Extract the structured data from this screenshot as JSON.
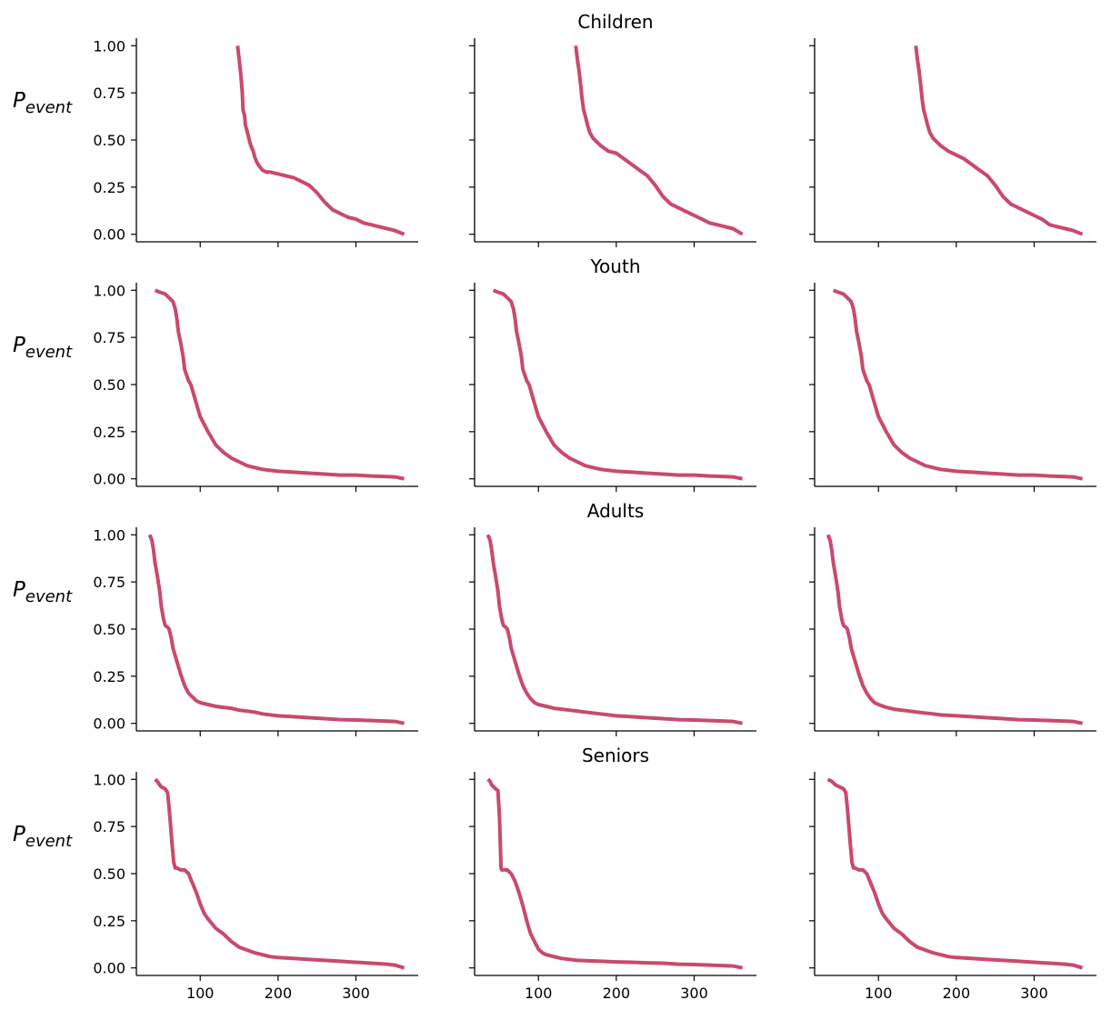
{
  "chart_data": {
    "type": "line",
    "layout": "4 rows x 3 columns of small multiples, shared x and y axes",
    "xlim": [
      18,
      380
    ],
    "xticks": [
      100,
      200,
      300
    ],
    "ylim": [
      -0.04,
      1.04
    ],
    "yticks": [
      0.0,
      0.25,
      0.5,
      0.75,
      1.0
    ],
    "ytick_labels": [
      "0.00",
      "0.25",
      "0.50",
      "0.75",
      "1.00"
    ],
    "ylabel_base": "P",
    "ylabel_sub": "event",
    "line_color": "#c94a6c",
    "grid": false,
    "rows": [
      {
        "title": "Children",
        "panels": [
          {
            "x": [
              148,
              150,
              152,
              154,
              155,
              157,
              158,
              160,
              163,
              165,
              168,
              170,
              173,
              176,
              180,
              185,
              190,
              200,
              210,
              220,
              230,
              240,
              250,
              260,
              270,
              280,
              290,
              300,
              310,
              320,
              330,
              340,
              350,
              362
            ],
            "y": [
              1.0,
              0.93,
              0.85,
              0.75,
              0.66,
              0.63,
              0.58,
              0.55,
              0.5,
              0.47,
              0.44,
              0.41,
              0.38,
              0.36,
              0.34,
              0.33,
              0.33,
              0.32,
              0.31,
              0.3,
              0.28,
              0.26,
              0.22,
              0.17,
              0.13,
              0.11,
              0.09,
              0.08,
              0.06,
              0.05,
              0.04,
              0.03,
              0.02,
              0.0
            ]
          },
          {
            "x": [
              148,
              150,
              152,
              154,
              156,
              158,
              160,
              163,
              166,
              170,
              175,
              180,
              190,
              200,
              210,
              220,
              230,
              240,
              250,
              260,
              270,
              280,
              290,
              300,
              310,
              320,
              330,
              340,
              350,
              362
            ],
            "y": [
              1.0,
              0.93,
              0.87,
              0.8,
              0.72,
              0.66,
              0.63,
              0.58,
              0.54,
              0.51,
              0.49,
              0.47,
              0.44,
              0.43,
              0.4,
              0.37,
              0.34,
              0.31,
              0.26,
              0.2,
              0.16,
              0.14,
              0.12,
              0.1,
              0.08,
              0.06,
              0.05,
              0.04,
              0.03,
              0.0
            ]
          },
          {
            "x": [
              148,
              150,
              152,
              154,
              156,
              158,
              160,
              163,
              166,
              170,
              175,
              180,
              190,
              200,
              210,
              220,
              230,
              240,
              250,
              260,
              270,
              280,
              290,
              300,
              310,
              320,
              330,
              340,
              350,
              362
            ],
            "y": [
              1.0,
              0.93,
              0.87,
              0.8,
              0.72,
              0.66,
              0.63,
              0.58,
              0.54,
              0.51,
              0.49,
              0.47,
              0.44,
              0.42,
              0.4,
              0.37,
              0.34,
              0.31,
              0.26,
              0.2,
              0.16,
              0.14,
              0.12,
              0.1,
              0.08,
              0.05,
              0.04,
              0.03,
              0.02,
              0.0
            ]
          }
        ]
      },
      {
        "title": "Youth",
        "panels": [
          {
            "x": [
              42,
              48,
              55,
              60,
              65,
              68,
              70,
              72,
              75,
              78,
              80,
              85,
              88,
              90,
              95,
              100,
              105,
              110,
              120,
              130,
              140,
              150,
              160,
              170,
              180,
              200,
              220,
              240,
              260,
              280,
              300,
              320,
              340,
              350,
              362
            ],
            "y": [
              1.0,
              0.99,
              0.98,
              0.96,
              0.94,
              0.9,
              0.85,
              0.78,
              0.72,
              0.65,
              0.58,
              0.52,
              0.5,
              0.47,
              0.4,
              0.33,
              0.29,
              0.25,
              0.18,
              0.14,
              0.11,
              0.09,
              0.07,
              0.06,
              0.05,
              0.04,
              0.035,
              0.03,
              0.025,
              0.02,
              0.02,
              0.015,
              0.012,
              0.01,
              0.0
            ]
          },
          {
            "x": [
              42,
              48,
              55,
              60,
              65,
              68,
              70,
              72,
              75,
              78,
              80,
              85,
              88,
              90,
              95,
              100,
              105,
              110,
              120,
              130,
              140,
              150,
              160,
              170,
              180,
              200,
              220,
              240,
              260,
              280,
              300,
              320,
              340,
              350,
              362
            ],
            "y": [
              1.0,
              0.99,
              0.98,
              0.96,
              0.94,
              0.9,
              0.85,
              0.78,
              0.72,
              0.65,
              0.58,
              0.52,
              0.5,
              0.47,
              0.4,
              0.33,
              0.29,
              0.25,
              0.18,
              0.14,
              0.11,
              0.09,
              0.07,
              0.06,
              0.05,
              0.04,
              0.035,
              0.03,
              0.025,
              0.02,
              0.02,
              0.015,
              0.012,
              0.01,
              0.0
            ]
          },
          {
            "x": [
              42,
              48,
              55,
              60,
              65,
              68,
              70,
              72,
              75,
              78,
              80,
              85,
              88,
              90,
              95,
              100,
              105,
              110,
              120,
              130,
              140,
              150,
              160,
              170,
              180,
              200,
              220,
              240,
              260,
              280,
              300,
              320,
              340,
              350,
              362
            ],
            "y": [
              1.0,
              0.99,
              0.98,
              0.96,
              0.94,
              0.9,
              0.85,
              0.78,
              0.72,
              0.65,
              0.58,
              0.52,
              0.5,
              0.47,
              0.4,
              0.33,
              0.29,
              0.25,
              0.18,
              0.14,
              0.11,
              0.09,
              0.07,
              0.06,
              0.05,
              0.04,
              0.035,
              0.03,
              0.025,
              0.02,
              0.02,
              0.015,
              0.012,
              0.01,
              0.0
            ]
          }
        ]
      },
      {
        "title": "Adults",
        "panels": [
          {
            "x": [
              35,
              38,
              40,
              42,
              45,
              48,
              50,
              53,
              55,
              58,
              60,
              63,
              65,
              70,
              75,
              80,
              85,
              90,
              95,
              100,
              110,
              120,
              130,
              140,
              150,
              160,
              170,
              180,
              200,
              220,
              240,
              260,
              280,
              300,
              320,
              340,
              350,
              362
            ],
            "y": [
              1.0,
              0.97,
              0.92,
              0.85,
              0.78,
              0.7,
              0.62,
              0.55,
              0.52,
              0.51,
              0.5,
              0.45,
              0.4,
              0.33,
              0.26,
              0.2,
              0.16,
              0.14,
              0.12,
              0.11,
              0.1,
              0.09,
              0.085,
              0.08,
              0.07,
              0.065,
              0.06,
              0.05,
              0.04,
              0.035,
              0.03,
              0.025,
              0.02,
              0.018,
              0.015,
              0.012,
              0.01,
              0.0
            ]
          },
          {
            "x": [
              35,
              38,
              40,
              42,
              45,
              48,
              50,
              53,
              55,
              58,
              60,
              63,
              65,
              70,
              75,
              80,
              85,
              90,
              95,
              100,
              110,
              120,
              130,
              140,
              150,
              160,
              170,
              180,
              200,
              220,
              240,
              260,
              280,
              300,
              320,
              340,
              350,
              362
            ],
            "y": [
              1.0,
              0.97,
              0.92,
              0.85,
              0.78,
              0.7,
              0.62,
              0.55,
              0.52,
              0.51,
              0.5,
              0.45,
              0.4,
              0.33,
              0.26,
              0.2,
              0.16,
              0.13,
              0.11,
              0.1,
              0.09,
              0.08,
              0.075,
              0.07,
              0.065,
              0.06,
              0.055,
              0.05,
              0.04,
              0.035,
              0.03,
              0.025,
              0.02,
              0.018,
              0.015,
              0.012,
              0.01,
              0.0
            ]
          },
          {
            "x": [
              35,
              38,
              40,
              42,
              45,
              48,
              50,
              53,
              55,
              58,
              60,
              63,
              65,
              70,
              75,
              80,
              85,
              90,
              95,
              100,
              110,
              120,
              130,
              140,
              150,
              160,
              170,
              180,
              200,
              220,
              240,
              260,
              280,
              300,
              320,
              340,
              350,
              362
            ],
            "y": [
              1.0,
              0.97,
              0.92,
              0.85,
              0.78,
              0.7,
              0.62,
              0.55,
              0.52,
              0.51,
              0.5,
              0.45,
              0.4,
              0.33,
              0.26,
              0.2,
              0.16,
              0.13,
              0.11,
              0.1,
              0.085,
              0.075,
              0.07,
              0.065,
              0.06,
              0.055,
              0.05,
              0.045,
              0.04,
              0.035,
              0.03,
              0.025,
              0.02,
              0.018,
              0.015,
              0.012,
              0.01,
              0.0
            ]
          }
        ]
      },
      {
        "title": "Seniors",
        "panels": [
          {
            "x": [
              42,
              45,
              48,
              50,
              55,
              58,
              60,
              62,
              64,
              66,
              68,
              70,
              75,
              80,
              85,
              88,
              90,
              95,
              100,
              105,
              110,
              120,
              130,
              140,
              150,
              160,
              170,
              180,
              190,
              200,
              220,
              240,
              260,
              280,
              300,
              320,
              340,
              350,
              362
            ],
            "y": [
              1.0,
              0.99,
              0.97,
              0.96,
              0.95,
              0.93,
              0.85,
              0.75,
              0.65,
              0.56,
              0.53,
              0.53,
              0.52,
              0.52,
              0.5,
              0.47,
              0.45,
              0.4,
              0.34,
              0.29,
              0.26,
              0.21,
              0.18,
              0.14,
              0.11,
              0.095,
              0.08,
              0.07,
              0.06,
              0.055,
              0.05,
              0.045,
              0.04,
              0.035,
              0.03,
              0.025,
              0.02,
              0.015,
              0.0
            ]
          },
          {
            "x": [
              35,
              38,
              40,
              45,
              48,
              50,
              52,
              53,
              55,
              58,
              60,
              65,
              70,
              75,
              80,
              85,
              90,
              95,
              100,
              105,
              110,
              120,
              130,
              140,
              150,
              160,
              180,
              200,
              220,
              240,
              260,
              280,
              300,
              320,
              340,
              350,
              362
            ],
            "y": [
              1.0,
              0.99,
              0.97,
              0.95,
              0.94,
              0.8,
              0.53,
              0.52,
              0.52,
              0.52,
              0.52,
              0.5,
              0.46,
              0.4,
              0.33,
              0.25,
              0.18,
              0.14,
              0.1,
              0.08,
              0.07,
              0.06,
              0.05,
              0.045,
              0.04,
              0.038,
              0.035,
              0.032,
              0.03,
              0.027,
              0.025,
              0.02,
              0.018,
              0.015,
              0.012,
              0.01,
              0.0
            ]
          },
          {
            "x": [
              35,
              40,
              45,
              50,
              55,
              58,
              60,
              62,
              64,
              66,
              68,
              70,
              75,
              80,
              85,
              88,
              90,
              95,
              100,
              105,
              110,
              120,
              130,
              140,
              150,
              160,
              170,
              180,
              190,
              200,
              220,
              240,
              260,
              280,
              300,
              320,
              340,
              350,
              362
            ],
            "y": [
              1.0,
              0.99,
              0.97,
              0.96,
              0.95,
              0.93,
              0.85,
              0.75,
              0.65,
              0.56,
              0.53,
              0.53,
              0.52,
              0.52,
              0.5,
              0.47,
              0.45,
              0.4,
              0.34,
              0.29,
              0.26,
              0.21,
              0.18,
              0.14,
              0.11,
              0.095,
              0.08,
              0.07,
              0.06,
              0.055,
              0.05,
              0.045,
              0.04,
              0.035,
              0.03,
              0.025,
              0.02,
              0.015,
              0.0
            ]
          }
        ]
      }
    ]
  }
}
